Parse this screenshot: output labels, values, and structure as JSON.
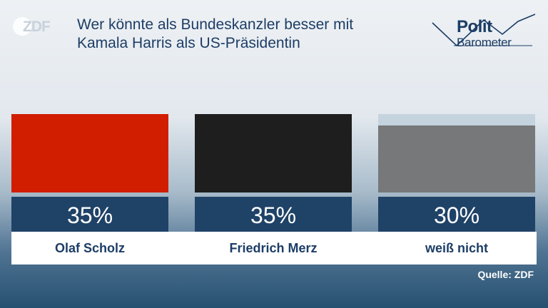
{
  "logo": {
    "text": "ZDF"
  },
  "title": {
    "line1": "Wer könnte als Bundeskanzler besser mit",
    "line2": "Kamala Harris als US-Präsidentin"
  },
  "brand": {
    "word1": "Polit",
    "word2": "Barometer"
  },
  "chart_data": {
    "type": "bar",
    "title": "Wer könnte als Bundeskanzler besser mit Kamala Harris als US-Präsidentin",
    "categories": [
      "Olaf Scholz",
      "Friedrich Merz",
      "weiß nicht"
    ],
    "values": [
      35,
      35,
      30
    ],
    "value_labels": [
      "35%",
      "35%",
      "30%"
    ],
    "ylim": [
      0,
      35
    ],
    "colors": [
      "#d11d00",
      "#1e1e1e",
      "#76787a"
    ],
    "grid": false,
    "legend": "none"
  },
  "source": "Quelle: ZDF"
}
